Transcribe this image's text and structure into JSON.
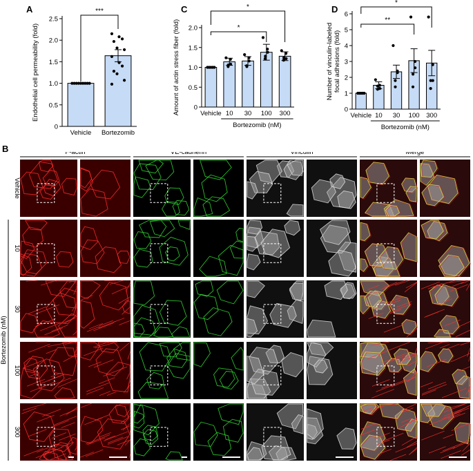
{
  "chart_data": [
    {
      "panel": "A",
      "type": "bar",
      "ylabel": "Endothelial cell permeability (fold)",
      "yticks": [
        "0",
        "0.5",
        "1.0",
        "1.5",
        "2.0",
        "2.5"
      ],
      "ylim": [
        0,
        2.5
      ],
      "categories": [
        "Vehicle",
        "Bortezomib"
      ],
      "values": [
        1.0,
        1.64
      ],
      "errors": [
        0.0,
        0.14
      ],
      "points": [
        [
          1,
          1,
          1,
          1,
          1,
          1,
          1,
          1,
          1
        ],
        [
          2.15,
          2.08,
          2.03,
          1.97,
          1.82,
          1.78,
          1.62,
          1.48,
          1.4,
          1.28,
          1.22,
          1.07,
          0.98
        ]
      ],
      "significance": [
        {
          "from": 0,
          "to": 1,
          "label": "***"
        }
      ]
    },
    {
      "panel": "C",
      "type": "bar",
      "ylabel": "Amount of actin stress fiber (fold)",
      "yticks": [
        "0",
        "0.5",
        "1.0",
        "1.5",
        "2.0"
      ],
      "ylim": [
        0,
        2.0
      ],
      "categories": [
        "Vehicle",
        "10",
        "30",
        "100",
        "300"
      ],
      "group_label": "Bortezomib (nM)",
      "values": [
        1.0,
        1.14,
        1.16,
        1.38,
        1.28
      ],
      "errors": [
        0.0,
        0.09,
        0.11,
        0.2,
        0.11
      ],
      "points": [
        [
          1,
          1,
          1,
          1,
          1
        ],
        [
          1.24,
          1.2,
          1.08,
          1.02,
          1.06
        ],
        [
          1.32,
          1.24,
          1.16,
          1.04,
          1.02
        ],
        [
          1.75,
          1.46,
          1.38,
          1.22,
          1.28
        ],
        [
          1.42,
          1.35,
          1.22,
          1.18,
          1.24
        ]
      ],
      "significance": [
        {
          "from": 0,
          "to": 4,
          "label": "*"
        },
        {
          "from": 0,
          "to": 3,
          "label": "*"
        }
      ]
    },
    {
      "panel": "D",
      "type": "bar",
      "ylabel": "Number of vinculin-labeled focal adhesions (fold)",
      "yticks": [
        "0",
        "1",
        "2",
        "3",
        "4",
        "5",
        "6"
      ],
      "ylim": [
        0,
        6
      ],
      "categories": [
        "Vehicle",
        "10",
        "30",
        "100",
        "300"
      ],
      "group_label": "Bortezomib (nM)",
      "values": [
        1.0,
        1.5,
        2.35,
        3.05,
        2.9
      ],
      "errors": [
        0.0,
        0.22,
        0.42,
        0.75,
        0.8
      ],
      "points": [
        [
          1,
          1,
          1,
          1,
          1
        ],
        [
          1.85,
          1.5,
          1.3,
          1.25,
          1.45
        ],
        [
          4.0,
          2.4,
          2.3,
          1.8,
          1.4
        ],
        [
          5.8,
          3.0,
          2.6,
          1.4,
          2.2
        ],
        [
          5.8,
          2.8,
          1.8,
          1.3,
          1.8
        ]
      ],
      "significance": [
        {
          "from": 0,
          "to": 4,
          "label": "*"
        },
        {
          "from": 0,
          "to": 3,
          "label": "**"
        }
      ]
    }
  ],
  "figure": {
    "panel_labels": {
      "a": "A",
      "b": "B",
      "c": "C",
      "d": "D"
    },
    "column_headers": [
      "F-actin",
      "VE-cadherin",
      "Vinculin",
      "Merge"
    ],
    "row_labels": [
      "Vehicle",
      "10",
      "30",
      "100",
      "300"
    ],
    "row_group_label": "Bortezomib (nM)",
    "colors": {
      "bar_fill": "#c6dbf5",
      "bar_stroke": "#000000",
      "f_actin": "#d81b1b",
      "ve_cadherin": "#26b826",
      "vinculin": "#8c8c8c"
    }
  }
}
